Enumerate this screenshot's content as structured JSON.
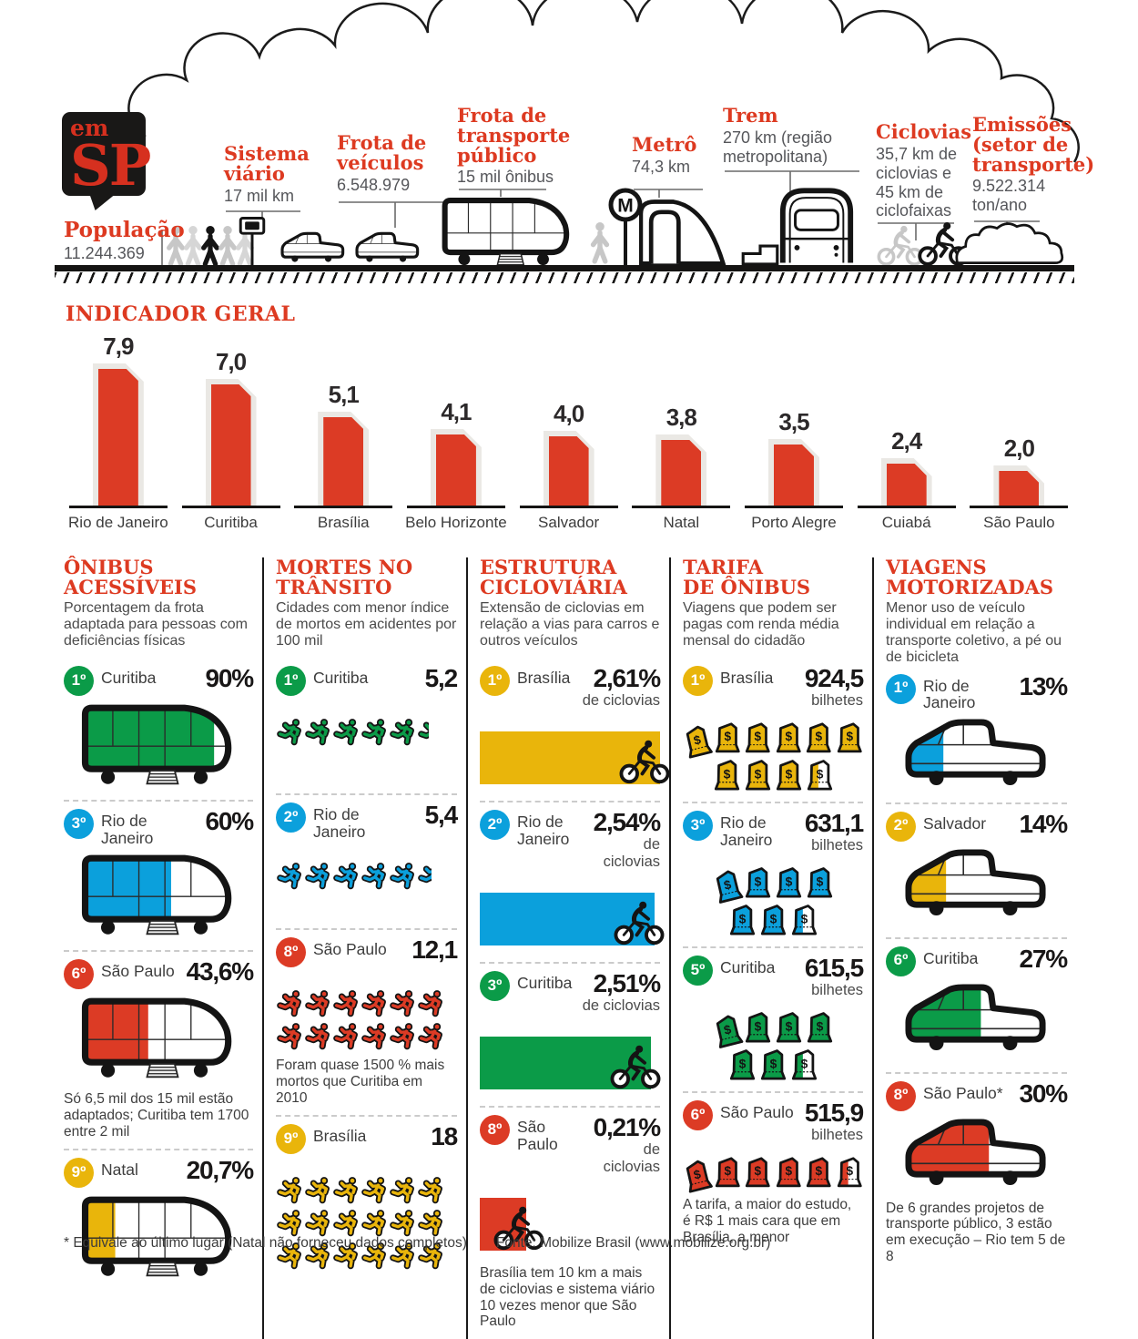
{
  "colors": {
    "red": "#dc3b25",
    "green": "#0b9b48",
    "blue": "#0ba0dc",
    "yellow": "#e9b50b"
  },
  "header": {
    "logo": {
      "line1": "em",
      "line2": "SP"
    },
    "population": {
      "title": "População",
      "value": "11.244.369"
    },
    "stats": [
      {
        "title": "Sistema\nviário",
        "value": "17 mil km"
      },
      {
        "title": "Frota de\nveículos",
        "value": "6.548.979"
      },
      {
        "title": "Frota de\ntransporte\npúblico",
        "value": "15 mil ônibus"
      },
      {
        "title": "Metrô",
        "value": "74,3 km"
      },
      {
        "title": "Trem",
        "value": "270 km (região\nmetropolitana)"
      },
      {
        "title": "Ciclovias",
        "value": "35,7 km de\nciclovias e\n45 km de\nciclofaixas"
      },
      {
        "title": "Emissões\n(setor de\ntransporte)",
        "value": "9.522.314\nton/ano"
      }
    ],
    "road_icons": [
      "pedestrians-icon",
      "speed-camera-icon",
      "car-icon",
      "car-icon",
      "bus-icon",
      "pedestrian-icon",
      "metro-sign-icon",
      "metro-tunnel-icon",
      "platform-icon",
      "train-icon",
      "cyclist-icon",
      "cyclist-icon",
      "exhaust-cloud-icon"
    ]
  },
  "chart_data": {
    "type": "bar",
    "title": "INDICADOR GERAL",
    "categories": [
      "Rio de Janeiro",
      "Curitiba",
      "Brasília",
      "Belo Horizonte",
      "Salvador",
      "Natal",
      "Porto Alegre",
      "Cuiabá",
      "São Paulo"
    ],
    "values": [
      7.9,
      7.0,
      5.1,
      4.1,
      4.0,
      3.8,
      3.5,
      2.4,
      2.0
    ],
    "value_labels": [
      "7,9",
      "7,0",
      "5,1",
      "4,1",
      "4,0",
      "3,8",
      "3,5",
      "2,4",
      "2,0"
    ],
    "xlabel": "",
    "ylabel": "",
    "ylim": [
      0,
      8
    ],
    "grid": false,
    "legend": "none",
    "bar_color": "#dc3b25",
    "bar_outline": "#eae8e4"
  },
  "columns": [
    {
      "title": "ÔNIBUS\nACESSÍVEIS",
      "description": "Porcentagem da frota adaptada para pessoas com deficiências físicas",
      "viz": "bus",
      "entries": [
        {
          "rank": "1º",
          "color": "green",
          "city": "Curitiba",
          "value": "90%",
          "fill_pct": 90
        },
        {
          "rank": "3º",
          "color": "blue",
          "city": "Rio de Janeiro",
          "value": "60%",
          "fill_pct": 60
        },
        {
          "rank": "6º",
          "color": "red",
          "city": "São Paulo",
          "value": "43,6%",
          "fill_pct": 44,
          "note": "Só 6,5 mil dos 15 mil estão adaptados; Curitiba tem 1700 entre 2 mil"
        },
        {
          "rank": "9º",
          "color": "yellow",
          "city": "Natal",
          "value": "20,7%",
          "fill_pct": 21
        }
      ]
    },
    {
      "title": "MORTES NO\nTRÂNSITO",
      "description": "Cidades com menor índice de mortos em acidentes por 100 mil",
      "viz": "runners",
      "entries": [
        {
          "rank": "1º",
          "color": "green",
          "city": "Curitiba",
          "value": "5,2",
          "value_num": 5.2
        },
        {
          "rank": "2º",
          "color": "blue",
          "city": "Rio de Janeiro",
          "value": "5,4",
          "value_num": 5.4
        },
        {
          "rank": "8º",
          "color": "red",
          "city": "São Paulo",
          "value": "12,1",
          "value_num": 12.1,
          "note": "Foram quase 1500 % mais mortos que Curitiba em 2010"
        },
        {
          "rank": "9º",
          "color": "yellow",
          "city": "Brasília",
          "value": "18",
          "value_num": 18
        }
      ]
    },
    {
      "title": "ESTRUTURA\nCICLOVIÁRIA",
      "description": "Extensão de ciclovias em relação a vias para carros e outros veículos",
      "viz": "cycle",
      "entries": [
        {
          "rank": "1º",
          "color": "yellow",
          "city": "Brasília",
          "value": "2,61%",
          "value_sub": "de ciclovias",
          "bar_pct": 100
        },
        {
          "rank": "2º",
          "color": "blue",
          "city": "Rio de Janeiro",
          "value": "2,54%",
          "value_sub": "de ciclovias",
          "bar_pct": 97
        },
        {
          "rank": "3º",
          "color": "green",
          "city": "Curitiba",
          "value": "2,51%",
          "value_sub": "de ciclovias",
          "bar_pct": 95
        },
        {
          "rank": "8º",
          "color": "red",
          "city": "São Paulo",
          "value": "0,21%",
          "value_sub": "de ciclovias",
          "bar_pct": 26,
          "note": "Brasília tem 10 km a mais de ciclovias e sistema viário 10 vezes menor que São Paulo"
        }
      ]
    },
    {
      "title": "TARIFA\nDE ÔNIBUS",
      "description": "Viagens que podem ser pagas com renda média mensal do cidadão",
      "viz": "tickets",
      "entries": [
        {
          "rank": "1º",
          "color": "yellow",
          "city": "Brasília",
          "value": "924,5",
          "value_sub": "bilhetes",
          "rows": [
            6,
            4
          ]
        },
        {
          "rank": "3º",
          "color": "blue",
          "city": "Rio de Janeiro",
          "value": "631,1",
          "value_sub": "bilhetes",
          "rows": [
            4,
            3
          ]
        },
        {
          "rank": "5º",
          "color": "green",
          "city": "Curitiba",
          "value": "615,5",
          "value_sub": "bilhetes",
          "rows": [
            4,
            3
          ]
        },
        {
          "rank": "6º",
          "color": "red",
          "city": "São Paulo",
          "value": "515,9",
          "value_sub": "bilhetes",
          "rows": [
            6
          ],
          "note": "A tarifa, a maior do estudo, é R$ 1 mais cara que em Brasília, a menor"
        }
      ]
    },
    {
      "title": "VIAGENS\nMOTORIZADAS",
      "description": "Menor uso de veículo individual em relação a transporte coletivo, a pé ou de bicicleta",
      "viz": "car",
      "entries": [
        {
          "rank": "1º",
          "color": "blue",
          "city": "Rio de Janeiro",
          "value": "13%",
          "fill_pct": 26
        },
        {
          "rank": "2º",
          "color": "yellow",
          "city": "Salvador",
          "value": "14%",
          "fill_pct": 28
        },
        {
          "rank": "6º",
          "color": "green",
          "city": "Curitiba",
          "value": "27%",
          "fill_pct": 54
        },
        {
          "rank": "8º",
          "color": "red",
          "city": "São Paulo*",
          "value": "30%",
          "fill_pct": 60,
          "note": "De 6 grandes projetos de transporte público, 3 estão em execução – Rio tem 5 de 8"
        }
      ]
    }
  ],
  "footer": {
    "note": "* Equivale ao último lugar (Natal não forneceu dados completos)",
    "source": "Fonte: Mobilize Brasil (www.mobilize.org.br)"
  }
}
